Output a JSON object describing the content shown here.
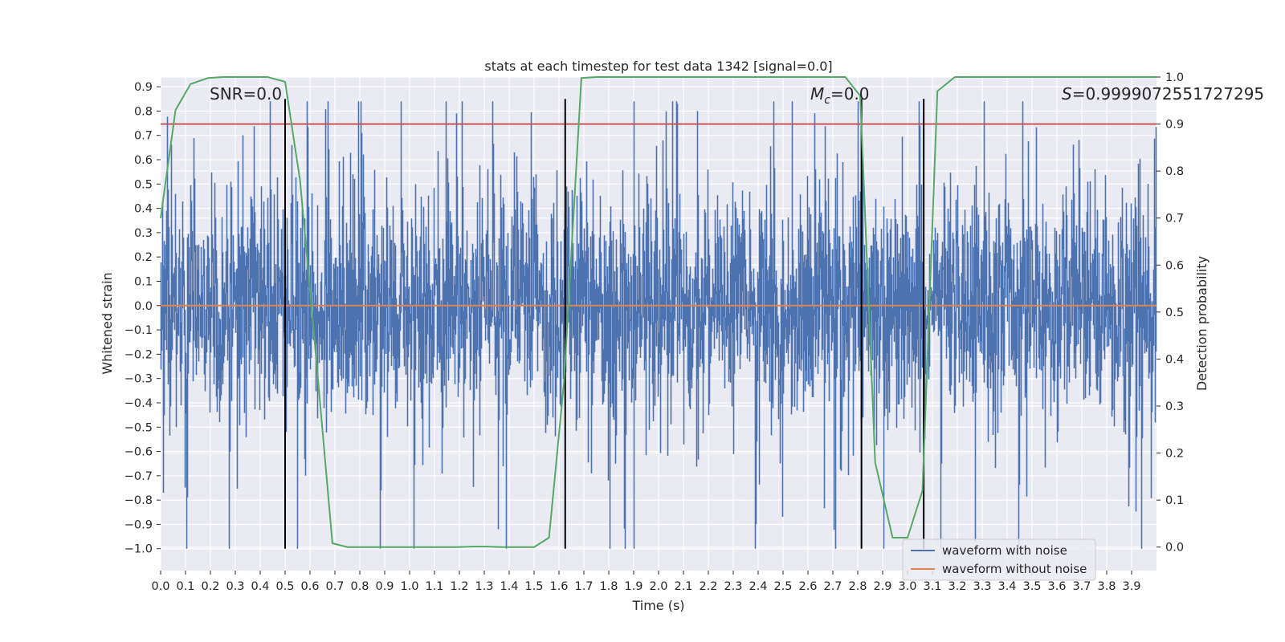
{
  "chart_data": {
    "type": "line",
    "title": "stats at each timestep for test data 1342 [signal=0.0]",
    "xlabel": "Time (s)",
    "ylabel": "Whitened strain",
    "y2label": "Detection probability",
    "xlim": [
      0.0,
      4.0
    ],
    "ylim": [
      -1.09,
      0.94
    ],
    "y2lim": [
      -0.05,
      1.0
    ],
    "xticks": [
      "0.0",
      "0.1",
      "0.2",
      "0.3",
      "0.4",
      "0.5",
      "0.6",
      "0.7",
      "0.8",
      "0.9",
      "1.0",
      "1.1",
      "1.2",
      "1.3",
      "1.4",
      "1.5",
      "1.6",
      "1.7",
      "1.8",
      "1.9",
      "2.0",
      "2.1",
      "2.2",
      "2.3",
      "2.4",
      "2.5",
      "2.6",
      "2.7",
      "2.8",
      "2.9",
      "3.0",
      "3.1",
      "3.2",
      "3.3",
      "3.4",
      "3.5",
      "3.6",
      "3.7",
      "3.8",
      "3.9"
    ],
    "yticks": [
      "0.9",
      "0.8",
      "0.7",
      "0.6",
      "0.5",
      "0.4",
      "0.3",
      "0.2",
      "0.1",
      "0.0",
      "−0.1",
      "−0.2",
      "−0.3",
      "−0.4",
      "−0.5",
      "−0.6",
      "−0.7",
      "−0.8",
      "−0.9",
      "−1.0"
    ],
    "y2ticks": [
      "1.0",
      "0.9",
      "0.8",
      "0.7",
      "0.6",
      "0.5",
      "0.4",
      "0.3",
      "0.2",
      "0.1",
      "0.0"
    ],
    "annotations": {
      "snr": "SNR=0.0",
      "mc_symbol": "M",
      "mc_sub": "c",
      "mc_value": "=0.0",
      "s_symbol": "S",
      "s_value": "=0.9999072551727295"
    },
    "legend": [
      "waveform with noise",
      "waveform without noise"
    ],
    "legend_position": "lower-right",
    "colors": {
      "noise": "#4c72b0",
      "clean": "#dd8452",
      "probability": "#55a868",
      "threshold": "#c44e52",
      "markers": "#000000",
      "plot_bg": "#eaeaf2",
      "grid": "#ffffff"
    },
    "series": [
      {
        "name": "waveform with noise",
        "description": "dense Gaussian-like noise around 0",
        "amplitude_core": 0.25,
        "range": [
          -1.0,
          0.84
        ]
      },
      {
        "name": "waveform without noise",
        "x": [
          0.0,
          4.0
        ],
        "y": [
          0.0,
          0.0
        ]
      },
      {
        "name": "detection probability",
        "axis": "y2",
        "x": [
          0.0,
          0.06,
          0.12,
          0.19,
          0.25,
          0.31,
          0.37,
          0.43,
          0.5,
          0.56,
          0.62,
          0.69,
          0.75,
          0.81,
          0.87,
          0.94,
          1.0,
          1.06,
          1.12,
          1.19,
          1.25,
          1.31,
          1.37,
          1.44,
          1.5,
          1.56,
          1.62,
          1.69,
          1.75,
          1.81,
          1.87,
          1.94,
          2.0,
          2.06,
          2.12,
          2.19,
          2.25,
          2.31,
          2.37,
          2.44,
          2.5,
          2.56,
          2.62,
          2.69,
          2.75,
          2.81,
          2.87,
          2.94,
          3.0,
          3.06,
          3.12,
          3.19,
          3.25,
          3.31,
          3.37,
          3.44,
          3.5,
          3.56,
          3.62,
          3.69,
          3.75,
          3.81,
          3.87,
          3.94,
          4.0
        ],
        "y": [
          0.7,
          0.93,
          0.985,
          0.998,
          1.0,
          1.0,
          1.0,
          1.0,
          0.99,
          0.78,
          0.43,
          0.008,
          0.0,
          0.0,
          0.0,
          0.0,
          0.0,
          0.0,
          0.0,
          0.0,
          0.001,
          0.001,
          0.0,
          0.0,
          0.0,
          0.02,
          0.35,
          0.998,
          1.0,
          1.0,
          1.0,
          1.0,
          1.0,
          1.0,
          1.0,
          1.0,
          1.0,
          1.0,
          1.0,
          1.0,
          1.0,
          1.0,
          1.0,
          1.0,
          1.0,
          0.96,
          0.18,
          0.02,
          0.02,
          0.12,
          0.97,
          1.0,
          1.0,
          1.0,
          1.0,
          1.0,
          1.0,
          1.0,
          1.0,
          1.0,
          1.0,
          1.0,
          1.0,
          1.0,
          1.0
        ]
      },
      {
        "name": "threshold",
        "axis": "y2",
        "y": 0.9
      }
    ],
    "vertical_markers_x": [
      0.5,
      1.625,
      2.815,
      3.065
    ],
    "vertical_markers_yrange": [
      -1.0,
      0.85
    ]
  }
}
